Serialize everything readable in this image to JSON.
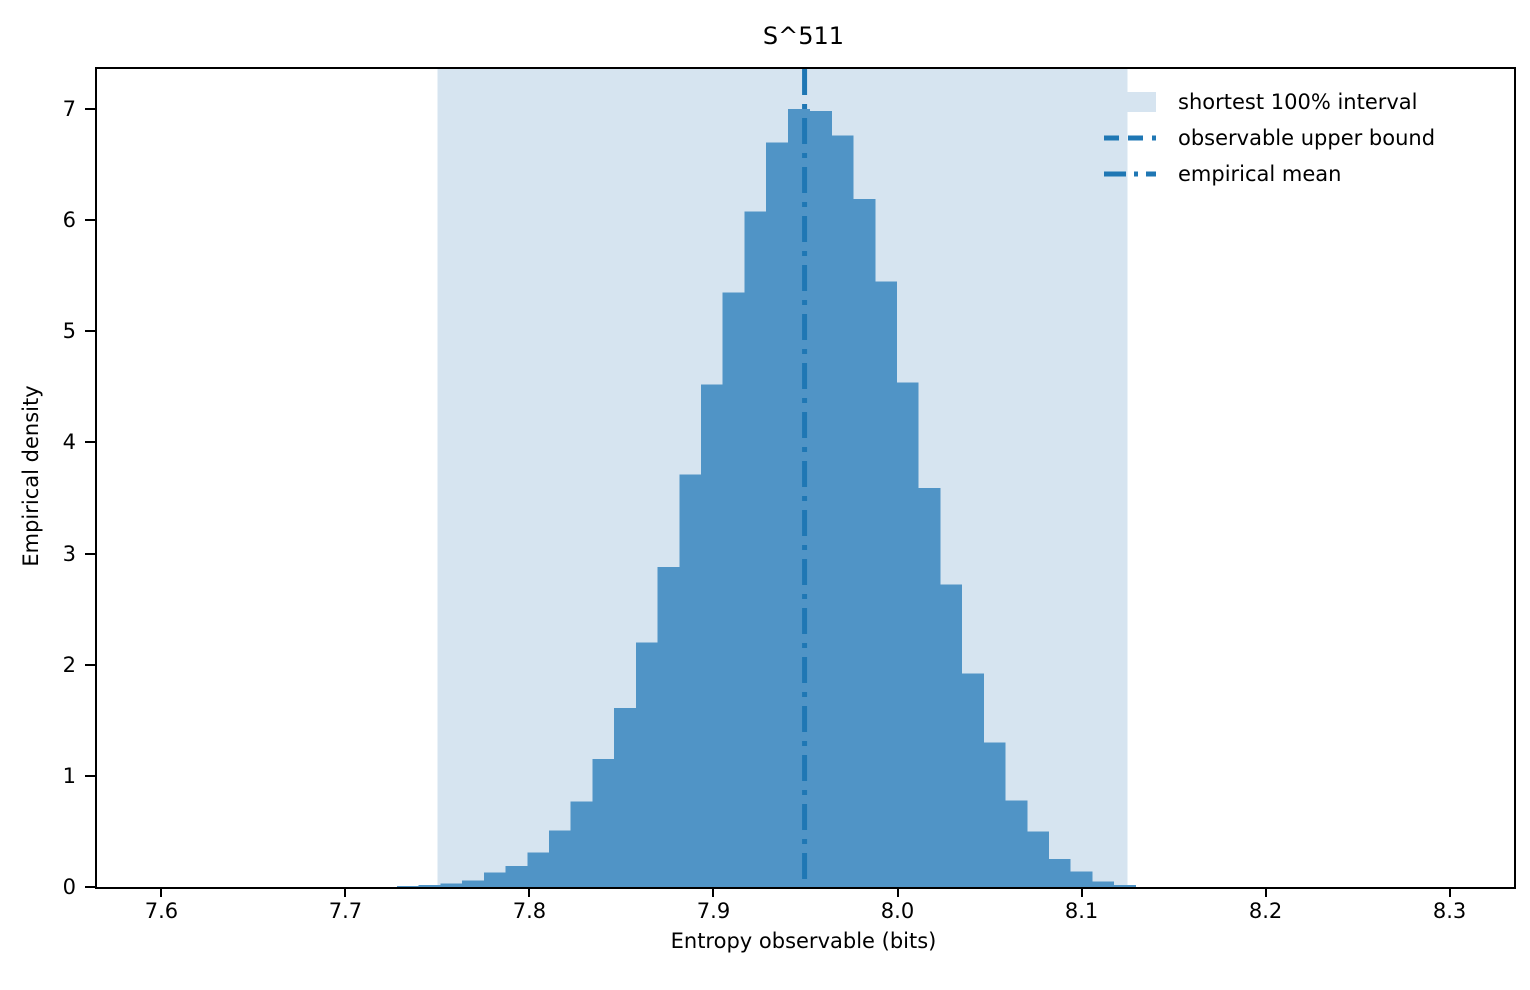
{
  "chart_data": {
    "type": "bar",
    "subtype": "histogram",
    "title": "S^511",
    "xlabel": "Entropy observable (bits)",
    "ylabel": "Empirical density",
    "xlim": [
      7.565,
      8.335
    ],
    "ylim": [
      0,
      7.36
    ],
    "grid": false,
    "legend_position": "upper right",
    "xticks": [
      {
        "v": 7.6,
        "label": "7.6"
      },
      {
        "v": 7.7,
        "label": "7.7"
      },
      {
        "v": 7.8,
        "label": "7.8"
      },
      {
        "v": 7.9,
        "label": "7.9"
      },
      {
        "v": 8.0,
        "label": "8.0"
      },
      {
        "v": 8.1,
        "label": "8.1"
      },
      {
        "v": 8.2,
        "label": "8.2"
      },
      {
        "v": 8.3,
        "label": "8.3"
      }
    ],
    "yticks": [
      {
        "v": 0,
        "label": "0"
      },
      {
        "v": 1,
        "label": "1"
      },
      {
        "v": 2,
        "label": "2"
      },
      {
        "v": 3,
        "label": "3"
      },
      {
        "v": 4,
        "label": "4"
      },
      {
        "v": 5,
        "label": "5"
      },
      {
        "v": 6,
        "label": "6"
      },
      {
        "v": 7,
        "label": "7"
      }
    ],
    "histogram": {
      "bin_start": 7.728,
      "bin_width": 0.0118,
      "densities": [
        0.01,
        0.02,
        0.03,
        0.06,
        0.13,
        0.19,
        0.31,
        0.51,
        0.77,
        1.15,
        1.61,
        2.2,
        2.88,
        3.71,
        4.52,
        5.35,
        6.08,
        6.7,
        7.0,
        6.98,
        6.76,
        6.19,
        5.45,
        4.54,
        3.59,
        2.72,
        1.92,
        1.3,
        0.78,
        0.5,
        0.25,
        0.14,
        0.05,
        0.02
      ]
    },
    "interval": {
      "label": "shortest 100% interval",
      "from": 7.75,
      "to": 8.125
    },
    "upper_bound": {
      "label": "observable upper bound",
      "style": "dashed",
      "value": null
    },
    "mean": {
      "label": "empirical mean",
      "style": "dashdot",
      "value": 7.9495
    },
    "legend": [
      {
        "label": "shortest 100% interval",
        "type": "patch"
      },
      {
        "label": "observable upper bound",
        "type": "dashed-line"
      },
      {
        "label": "empirical mean",
        "type": "dashdot-line"
      }
    ],
    "colors": {
      "bar": "#5094c6",
      "band": "#d6e4f0",
      "line": "#1f77b4",
      "axis": "#000000"
    }
  }
}
